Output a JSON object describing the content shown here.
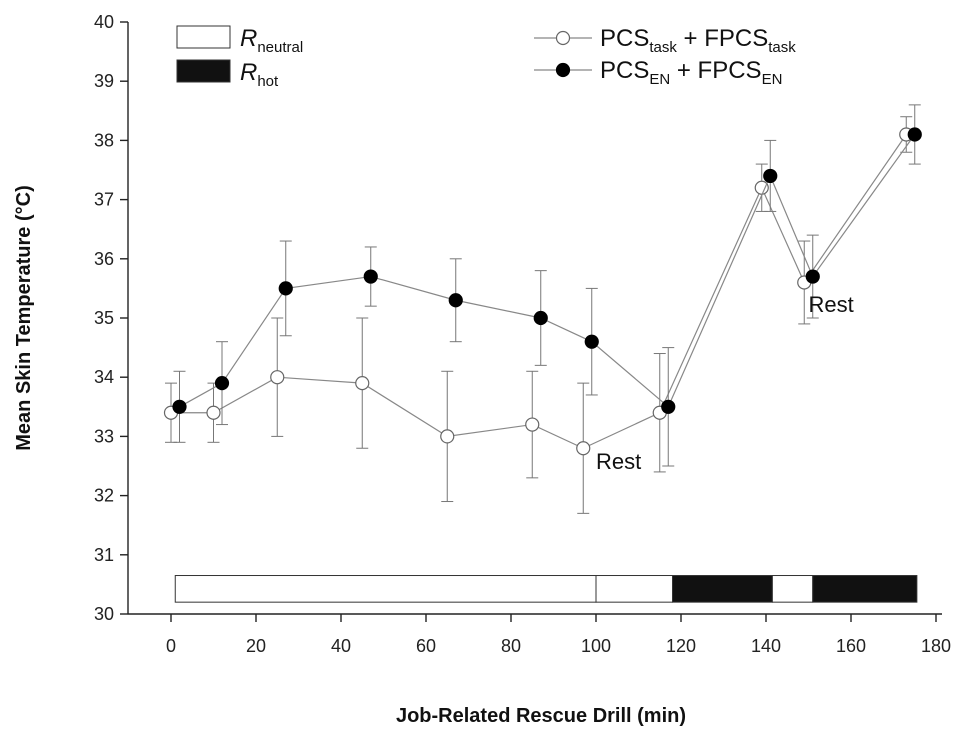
{
  "chart_data": {
    "type": "line",
    "xlabel": "Job-Related Rescue Drill (min)",
    "ylabel": "Mean Skin Temperature (°C)",
    "xlim": [
      -10,
      180
    ],
    "ylim": [
      30,
      40
    ],
    "x_ticks": [
      "0",
      "20",
      "40",
      "60",
      "80",
      "100",
      "120",
      "140",
      "160",
      "180"
    ],
    "y_ticks": [
      "30",
      "31",
      "32",
      "33",
      "34",
      "35",
      "36",
      "37",
      "38",
      "39",
      "40"
    ],
    "series": [
      {
        "name": "PCStask + FPCStask",
        "label_parts": {
          "a": "PCS",
          "a_sub": "task",
          "b": " + FPCS",
          "b_sub": "task"
        },
        "marker": "open-circle",
        "color": "#999999",
        "points": [
          {
            "x": 0,
            "y": 33.4,
            "err": 0.5
          },
          {
            "x": 10,
            "y": 33.4,
            "err": 0.5
          },
          {
            "x": 25,
            "y": 34.0,
            "err": 1.0
          },
          {
            "x": 45,
            "y": 33.9,
            "err": 1.1
          },
          {
            "x": 65,
            "y": 33.0,
            "err": 1.1
          },
          {
            "x": 85,
            "y": 33.2,
            "err": 0.9
          },
          {
            "x": 97,
            "y": 32.8,
            "err": 1.1
          },
          {
            "x": 115,
            "y": 33.4,
            "err": 1.0
          },
          {
            "x": 139,
            "y": 37.2,
            "err": 0.4
          },
          {
            "x": 149,
            "y": 35.6,
            "err": 0.7
          },
          {
            "x": 173,
            "y": 38.1,
            "err": 0.3
          }
        ]
      },
      {
        "name": "PCSEN + FPCSEN",
        "label_parts": {
          "a": "PCS",
          "a_sub": "EN",
          "b": " + FPCS",
          "b_sub": "EN"
        },
        "marker": "filled-circle",
        "color": "#000000",
        "points": [
          {
            "x": 2,
            "y": 33.5,
            "err": 0.6
          },
          {
            "x": 12,
            "y": 33.9,
            "err": 0.7
          },
          {
            "x": 27,
            "y": 35.5,
            "err": 0.8
          },
          {
            "x": 47,
            "y": 35.7,
            "err": 0.5
          },
          {
            "x": 67,
            "y": 35.3,
            "err": 0.7
          },
          {
            "x": 87,
            "y": 35.0,
            "err": 0.8
          },
          {
            "x": 99,
            "y": 34.6,
            "err": 0.9
          },
          {
            "x": 117,
            "y": 33.5,
            "err": 1.0
          },
          {
            "x": 141,
            "y": 37.4,
            "err": 0.6
          },
          {
            "x": 151,
            "y": 35.7,
            "err": 0.7
          },
          {
            "x": 175,
            "y": 38.1,
            "err": 0.5
          }
        ]
      }
    ],
    "condition_bar": {
      "y_range": [
        30.2,
        30.65
      ],
      "segments": [
        {
          "x0": 1,
          "x1": 100,
          "condition": "neutral"
        },
        {
          "x0": 100,
          "x1": 118,
          "condition": "neutral"
        },
        {
          "x0": 118,
          "x1": 141.5,
          "condition": "hot"
        },
        {
          "x0": 141.5,
          "x1": 151,
          "condition": "neutral"
        },
        {
          "x0": 151,
          "x1": 175.5,
          "condition": "hot"
        }
      ]
    },
    "bar_legend": [
      {
        "key": "neutral",
        "label": "R",
        "sub": "neutral",
        "fill": "#ffffff"
      },
      {
        "key": "hot",
        "label": "R",
        "sub": "hot",
        "fill": "#111111"
      }
    ],
    "annotations": [
      {
        "text": "Rest",
        "x": 100,
        "y": 32.45
      },
      {
        "text": "Rest",
        "x": 150,
        "y": 35.1
      }
    ],
    "legend_position": "top-right",
    "grid": false
  }
}
